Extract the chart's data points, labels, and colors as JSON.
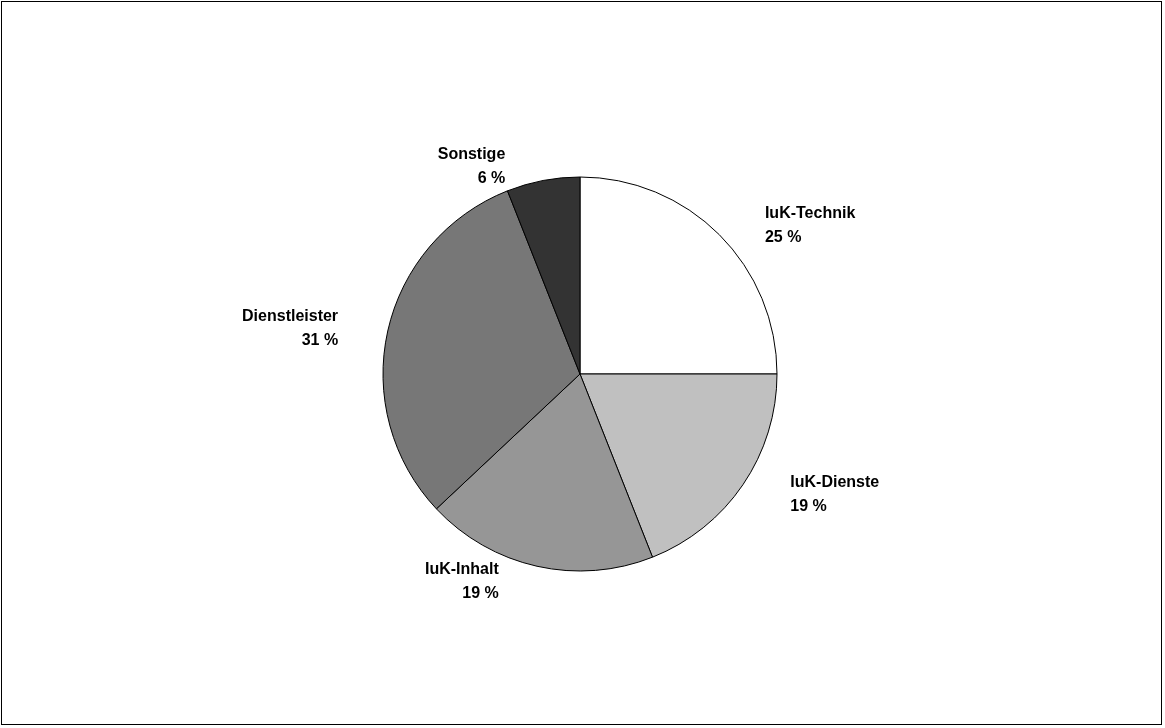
{
  "chart_data": {
    "type": "pie",
    "categories": [
      "IuK-Technik",
      "IuK-Dienste",
      "IuK-Inhalt",
      "Dienstleister",
      "Sonstige"
    ],
    "values": [
      25,
      19,
      19,
      31,
      6
    ],
    "value_labels": [
      "25 %",
      "19 %",
      "19 %",
      "31 %",
      "6 %"
    ],
    "colors": [
      "#ffffff",
      "#c0c0c0",
      "#969696",
      "#777777",
      "#333333"
    ],
    "legend": false
  }
}
